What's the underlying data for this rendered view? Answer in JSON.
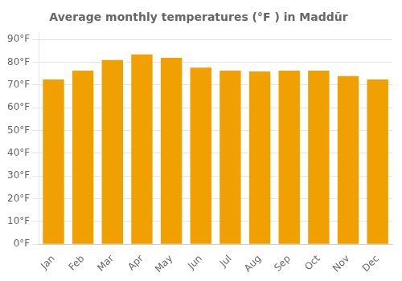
{
  "chart_data": {
    "type": "bar",
    "title": "Average monthly temperatures (°F ) in Maddūr",
    "categories": [
      "Jan",
      "Feb",
      "Mar",
      "Apr",
      "May",
      "Jun",
      "Jul",
      "Aug",
      "Sep",
      "Oct",
      "Nov",
      "Dec"
    ],
    "values": [
      72.5,
      76.3,
      81.0,
      83.5,
      82.0,
      77.7,
      76.3,
      76.0,
      76.3,
      76.3,
      74.0,
      72.5
    ],
    "color": "#F0A000",
    "ylim": [
      0,
      93
    ],
    "yticks": [
      {
        "value": 0,
        "label": "0°F"
      },
      {
        "value": 10,
        "label": "10°F"
      },
      {
        "value": 20,
        "label": "20°F"
      },
      {
        "value": 30,
        "label": "30°F"
      },
      {
        "value": 40,
        "label": "40°F"
      },
      {
        "value": 50,
        "label": "50°F"
      },
      {
        "value": 60,
        "label": "60°F"
      },
      {
        "value": 70,
        "label": "70°F"
      },
      {
        "value": 80,
        "label": "80°F"
      },
      {
        "value": 90,
        "label": "90°F"
      }
    ],
    "grid": true
  }
}
